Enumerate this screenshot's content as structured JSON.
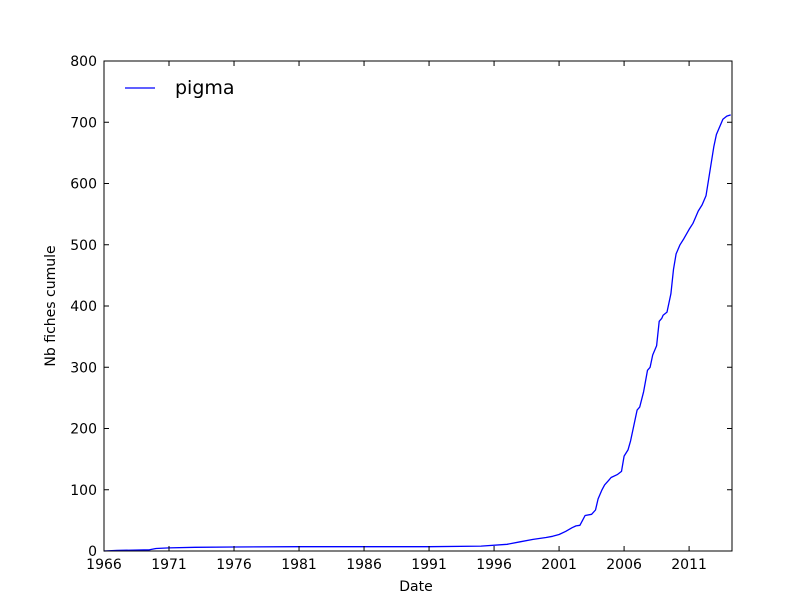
{
  "chart_data": {
    "type": "line",
    "xlabel": "Date",
    "ylabel": "Nb fiches cumule",
    "xlim": [
      1966.0,
      2014.3
    ],
    "ylim": [
      0,
      800
    ],
    "x_ticks": [
      1966,
      1971,
      1976,
      1981,
      1986,
      1991,
      1996,
      2001,
      2006,
      2011
    ],
    "x_tick_labels": [
      "1966",
      "1971",
      "1976",
      "1981",
      "1986",
      "1991",
      "1996",
      "2001",
      "2006",
      "2011"
    ],
    "y_ticks": [
      0,
      100,
      200,
      300,
      400,
      500,
      600,
      700,
      800
    ],
    "y_tick_labels": [
      "0",
      "100",
      "200",
      "300",
      "400",
      "500",
      "600",
      "700",
      "800"
    ],
    "grid": false,
    "legend_position": "top-left",
    "series": [
      {
        "name": "pigma",
        "color": "#0000ff",
        "x": [
          1966.0,
          1967.0,
          1969.5,
          1970.0,
          1971.0,
          1973.0,
          1976.0,
          1981.0,
          1986.0,
          1991.0,
          1995.0,
          1997.0,
          1998.0,
          1999.0,
          2000.0,
          2000.5,
          2001.0,
          2001.5,
          2002.0,
          2002.3,
          2002.6,
          2002.8,
          2003.0,
          2003.5,
          2003.8,
          2004.0,
          2004.3,
          2004.5,
          2004.8,
          2005.0,
          2005.5,
          2005.8,
          2006.0,
          2006.3,
          2006.5,
          2006.8,
          2007.0,
          2007.2,
          2007.5,
          2007.8,
          2008.0,
          2008.2,
          2008.5,
          2008.7,
          2008.9,
          2009.0,
          2009.3,
          2009.6,
          2009.8,
          2010.0,
          2010.1,
          2010.3,
          2010.6,
          2011.0,
          2011.3,
          2011.5,
          2011.7,
          2012.0,
          2012.3,
          2012.6,
          2012.9,
          2013.1,
          2013.3,
          2013.6,
          2013.9,
          2014.2
        ],
        "y": [
          0,
          1,
          2,
          4,
          5,
          6,
          6.5,
          7,
          7,
          7,
          8,
          11,
          15,
          19,
          22,
          24,
          27,
          32,
          38,
          41,
          42,
          50,
          58,
          60,
          67,
          85,
          100,
          108,
          115,
          120,
          125,
          130,
          155,
          165,
          180,
          210,
          230,
          235,
          260,
          295,
          300,
          320,
          335,
          375,
          380,
          385,
          390,
          420,
          460,
          485,
          490,
          500,
          510,
          525,
          535,
          545,
          555,
          565,
          580,
          620,
          660,
          680,
          690,
          705,
          710,
          712
        ]
      }
    ]
  }
}
